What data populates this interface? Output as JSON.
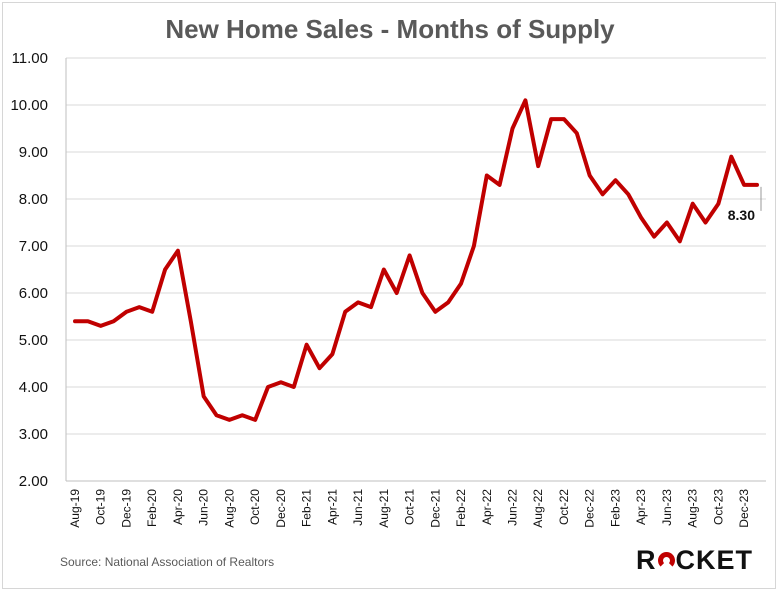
{
  "colors": {
    "line": "#c00000",
    "grid": "#d9d9d9",
    "text": "#111111",
    "title": "#595959"
  },
  "source": "Source: National Association of Realtors",
  "brand": {
    "prefix": "R",
    "suffix": "CKET",
    "icon": "rocket-o-icon"
  },
  "chart_data": {
    "type": "line",
    "title": "New Home Sales - Months of Supply",
    "xlabel": "",
    "ylabel": "",
    "ylim": [
      2.0,
      11.0
    ],
    "ytick_labels": [
      "2.00",
      "3.00",
      "4.00",
      "5.00",
      "6.00",
      "7.00",
      "8.00",
      "9.00",
      "10.00",
      "11.00"
    ],
    "grid": "horizontal",
    "x_tick_labels": [
      "Aug-19",
      "Oct-19",
      "Dec-19",
      "Feb-20",
      "Apr-20",
      "Jun-20",
      "Aug-20",
      "Oct-20",
      "Dec-20",
      "Feb-21",
      "Apr-21",
      "Jun-21",
      "Aug-21",
      "Oct-21",
      "Dec-21",
      "Feb-22",
      "Apr-22",
      "Jun-22",
      "Aug-22",
      "Oct-22",
      "Dec-22",
      "Feb-23",
      "Apr-23",
      "Jun-23",
      "Aug-23",
      "Oct-23",
      "Dec-23"
    ],
    "x": [
      "Aug-19",
      "Sep-19",
      "Oct-19",
      "Nov-19",
      "Dec-19",
      "Jan-20",
      "Feb-20",
      "Mar-20",
      "Apr-20",
      "May-20",
      "Jun-20",
      "Jul-20",
      "Aug-20",
      "Sep-20",
      "Oct-20",
      "Nov-20",
      "Dec-20",
      "Jan-21",
      "Feb-21",
      "Mar-21",
      "Apr-21",
      "May-21",
      "Jun-21",
      "Jul-21",
      "Aug-21",
      "Sep-21",
      "Oct-21",
      "Nov-21",
      "Dec-21",
      "Jan-22",
      "Feb-22",
      "Mar-22",
      "Apr-22",
      "May-22",
      "Jun-22",
      "Jul-22",
      "Aug-22",
      "Sep-22",
      "Oct-22",
      "Nov-22",
      "Dec-22",
      "Jan-23",
      "Feb-23",
      "Mar-23",
      "Apr-23",
      "May-23",
      "Jun-23",
      "Jul-23",
      "Aug-23",
      "Sep-23",
      "Oct-23",
      "Nov-23",
      "Dec-23",
      "Jan-24"
    ],
    "series": [
      {
        "values": [
          5.4,
          5.4,
          5.3,
          5.4,
          5.6,
          5.7,
          5.6,
          6.5,
          6.9,
          5.4,
          3.8,
          3.4,
          3.3,
          3.4,
          3.3,
          4.0,
          4.1,
          4.0,
          4.9,
          4.4,
          4.7,
          5.6,
          5.8,
          5.7,
          6.5,
          6.0,
          6.8,
          6.0,
          5.6,
          5.8,
          6.2,
          7.0,
          8.5,
          8.3,
          9.5,
          10.1,
          8.7,
          9.7,
          9.7,
          9.4,
          8.5,
          8.1,
          8.4,
          8.1,
          7.6,
          7.2,
          7.5,
          7.1,
          7.9,
          7.5,
          7.9,
          8.9,
          8.3,
          8.3
        ]
      }
    ],
    "annotation": {
      "label": "8.30",
      "value": 8.3
    }
  }
}
